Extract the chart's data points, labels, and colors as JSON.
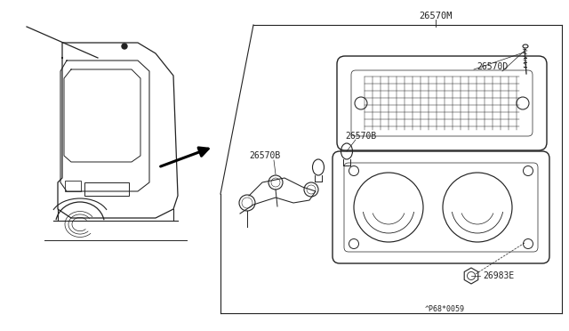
{
  "bg_color": "#ffffff",
  "lc": "#222222",
  "fig_w": 6.4,
  "fig_h": 3.72,
  "dpi": 100,
  "labels": {
    "top": "26570M",
    "screw": "26570D",
    "bulb": "26570B",
    "wire": "26570B",
    "nut": "26983E",
    "footer": "^P68*0059"
  }
}
